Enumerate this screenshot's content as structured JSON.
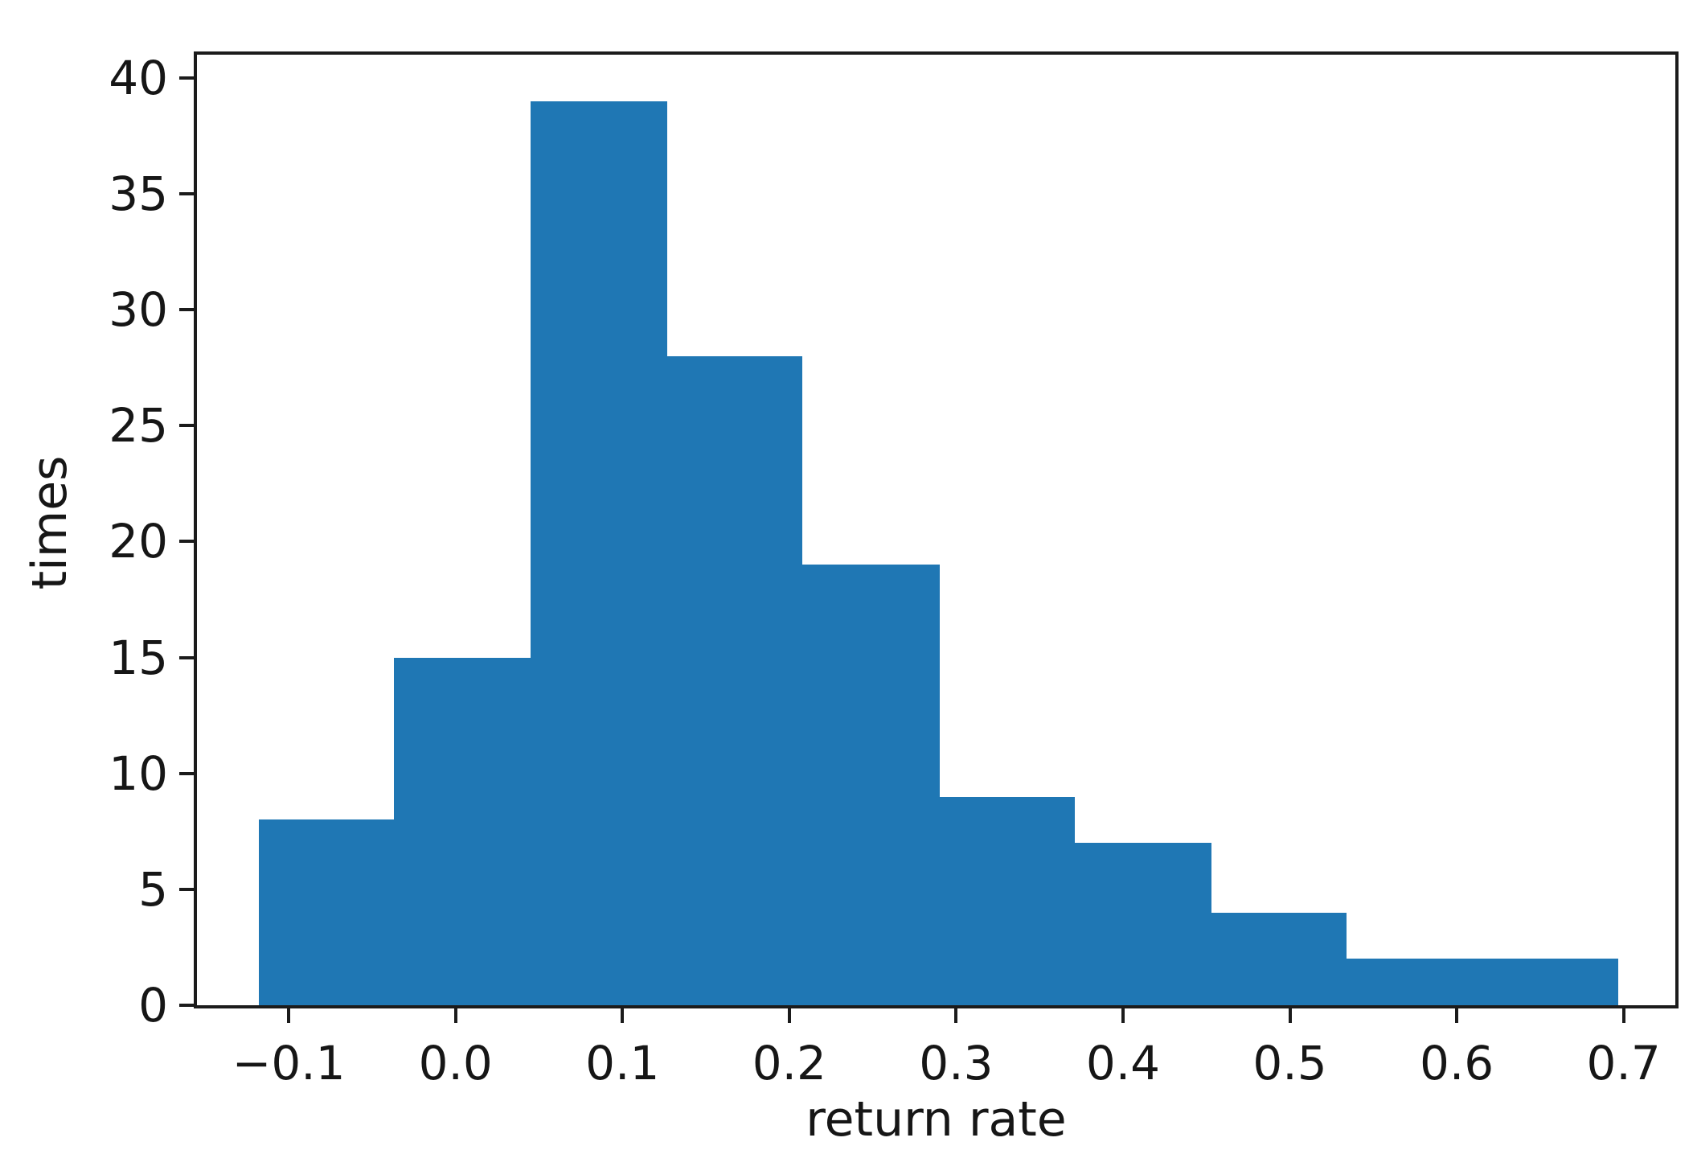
{
  "figure": {
    "background": "#ffffff",
    "bar_color": "#1f77b4",
    "axis_color": "#1b1b1b",
    "text_color": "#161616"
  },
  "chart_data": {
    "type": "bar",
    "subtype": "histogram",
    "title": "",
    "xlabel": "return rate",
    "ylabel": "times",
    "bin_edges": [
      -0.118,
      -0.037,
      0.045,
      0.127,
      0.208,
      0.29,
      0.371,
      0.453,
      0.534,
      0.616,
      0.697
    ],
    "values": [
      8,
      15,
      39,
      28,
      19,
      9,
      7,
      4,
      2,
      2
    ],
    "total_count": 133,
    "xlim": [
      -0.155,
      0.731
    ],
    "ylim": [
      0,
      41
    ],
    "grid": false,
    "legend": null,
    "x_ticks": [
      {
        "value": -0.1,
        "label": "−0.1"
      },
      {
        "value": 0.0,
        "label": "0.0"
      },
      {
        "value": 0.1,
        "label": "0.1"
      },
      {
        "value": 0.2,
        "label": "0.2"
      },
      {
        "value": 0.3,
        "label": "0.3"
      },
      {
        "value": 0.4,
        "label": "0.4"
      },
      {
        "value": 0.5,
        "label": "0.5"
      },
      {
        "value": 0.6,
        "label": "0.6"
      },
      {
        "value": 0.7,
        "label": "0.7"
      }
    ],
    "y_ticks": [
      {
        "value": 0,
        "label": "0"
      },
      {
        "value": 5,
        "label": "5"
      },
      {
        "value": 10,
        "label": "10"
      },
      {
        "value": 15,
        "label": "15"
      },
      {
        "value": 20,
        "label": "20"
      },
      {
        "value": 25,
        "label": "25"
      },
      {
        "value": 30,
        "label": "30"
      },
      {
        "value": 35,
        "label": "35"
      },
      {
        "value": 40,
        "label": "40"
      }
    ]
  }
}
